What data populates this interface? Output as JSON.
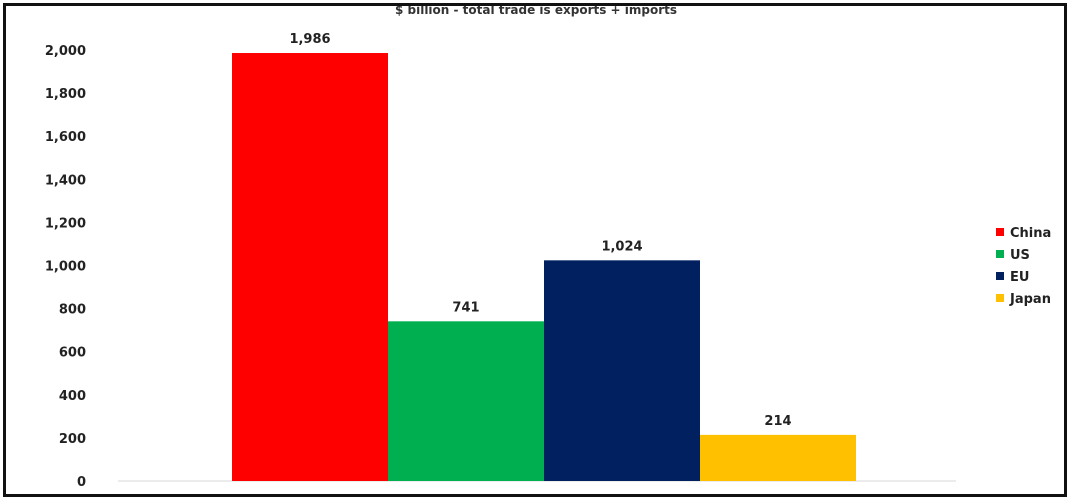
{
  "chart_data": {
    "type": "bar",
    "title": "$ billion - total trade is exports + imports",
    "categories": [
      "China",
      "US",
      "EU",
      "Japan"
    ],
    "series": [
      {
        "name": "China",
        "value": 1986,
        "color": "#ff0000"
      },
      {
        "name": "US",
        "value": 741,
        "color": "#00b050"
      },
      {
        "name": "EU",
        "value": 1024,
        "color": "#002060"
      },
      {
        "name": "Japan",
        "value": 214,
        "color": "#ffc000"
      }
    ],
    "data_labels": [
      "1,986",
      "741",
      "1,024",
      "214"
    ],
    "ylim": [
      0,
      2000
    ],
    "yticks": [
      0,
      200,
      400,
      600,
      800,
      1000,
      1200,
      1400,
      1600,
      1800,
      2000
    ],
    "ytick_labels": [
      "0",
      "200",
      "400",
      "600",
      "800",
      "1,000",
      "1,200",
      "1,400",
      "1,600",
      "1,800",
      "2,000"
    ],
    "xlabel": "",
    "ylabel": "",
    "grid": false,
    "legend_position": "right"
  }
}
